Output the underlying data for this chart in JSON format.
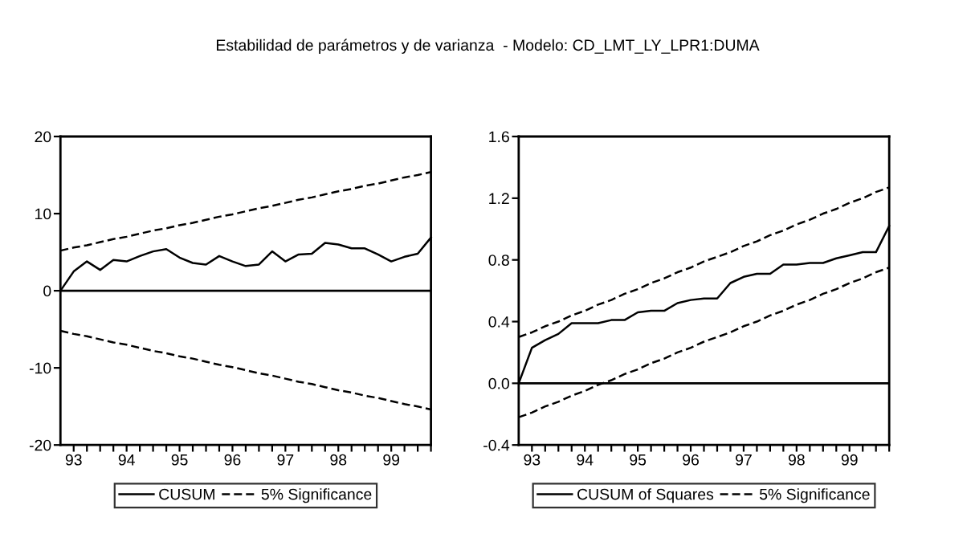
{
  "chart_data": [
    {
      "type": "line",
      "title": "Estabilidad de parámetros y de varianza  - Modelo: CD_LMT_LY_LPR1:DUMA",
      "xlim": [
        1992.75,
        1999.75
      ],
      "ylim": [
        -20,
        20
      ],
      "yticks": [
        -20,
        -10,
        0,
        10,
        20
      ],
      "xticks": [
        {
          "value": 1993,
          "label": "93"
        },
        {
          "value": 1993.25,
          "label": null
        },
        {
          "value": 1993.5,
          "label": null
        },
        {
          "value": 1993.75,
          "label": null
        },
        {
          "value": 1994,
          "label": "94"
        },
        {
          "value": 1994.25,
          "label": null
        },
        {
          "value": 1994.5,
          "label": null
        },
        {
          "value": 1994.75,
          "label": null
        },
        {
          "value": 1995,
          "label": "95"
        },
        {
          "value": 1995.25,
          "label": null
        },
        {
          "value": 1995.5,
          "label": null
        },
        {
          "value": 1995.75,
          "label": null
        },
        {
          "value": 1996,
          "label": "96"
        },
        {
          "value": 1996.25,
          "label": null
        },
        {
          "value": 1996.5,
          "label": null
        },
        {
          "value": 1996.75,
          "label": null
        },
        {
          "value": 1997,
          "label": "97"
        },
        {
          "value": 1997.25,
          "label": null
        },
        {
          "value": 1997.5,
          "label": null
        },
        {
          "value": 1997.75,
          "label": null
        },
        {
          "value": 1998,
          "label": "98"
        },
        {
          "value": 1998.25,
          "label": null
        },
        {
          "value": 1998.5,
          "label": null
        },
        {
          "value": 1998.75,
          "label": null
        },
        {
          "value": 1999,
          "label": "99"
        },
        {
          "value": 1999.25,
          "label": null
        },
        {
          "value": 1999.5,
          "label": null
        },
        {
          "value": 1999.75,
          "label": null
        }
      ],
      "x": [
        1992.75,
        1993,
        1993.25,
        1993.5,
        1993.75,
        1994,
        1994.25,
        1994.5,
        1994.75,
        1995,
        1995.25,
        1995.5,
        1995.75,
        1996,
        1996.25,
        1996.5,
        1996.75,
        1997,
        1997.25,
        1997.5,
        1997.75,
        1998,
        1998.25,
        1998.5,
        1998.75,
        1999,
        1999.25,
        1999.5,
        1999.75
      ],
      "series": [
        {
          "name": "CUSUM",
          "color": "#000000",
          "line_style": "solid",
          "values": [
            0,
            2.5,
            3.8,
            2.7,
            4.0,
            3.8,
            4.5,
            5.1,
            5.4,
            4.3,
            3.6,
            3.4,
            4.5,
            3.8,
            3.2,
            3.4,
            5.1,
            3.8,
            4.7,
            4.8,
            6.2,
            6.0,
            5.5,
            5.5,
            4.7,
            3.8,
            4.4,
            4.8,
            6.9
          ]
        },
        {
          "name": "5% Significance",
          "color": "#000000",
          "line_style": "dashed",
          "values": [
            5.2,
            5.6,
            5.9,
            6.3,
            6.7,
            7.0,
            7.4,
            7.8,
            8.1,
            8.5,
            8.8,
            9.2,
            9.6,
            9.9,
            10.3,
            10.7,
            11.0,
            11.4,
            11.8,
            12.1,
            12.5,
            12.9,
            13.2,
            13.6,
            13.9,
            14.3,
            14.7,
            15.0,
            15.4
          ]
        },
        {
          "color": "#000000",
          "line_style": "dashed",
          "values": [
            -5.2,
            -5.6,
            -5.9,
            -6.3,
            -6.7,
            -7.0,
            -7.4,
            -7.8,
            -8.1,
            -8.5,
            -8.8,
            -9.2,
            -9.6,
            -9.9,
            -10.3,
            -10.7,
            -11.0,
            -11.4,
            -11.8,
            -12.1,
            -12.5,
            -12.9,
            -13.2,
            -13.6,
            -13.9,
            -14.3,
            -14.7,
            -15.0,
            -15.4
          ]
        }
      ],
      "ref_lines": [
        {
          "axis": "y",
          "value": 0,
          "color": "#000000",
          "line_style": "solid"
        }
      ],
      "grid": false,
      "legend": "bottom"
    },
    {
      "type": "line",
      "xlim": [
        1992.75,
        1999.75
      ],
      "ylim": [
        -0.4,
        1.6
      ],
      "yticks": [
        {
          "value": -0.4,
          "label": "-0.4"
        },
        {
          "value": 0,
          "label": "0.0"
        },
        {
          "value": 0.4,
          "label": "0.4"
        },
        {
          "value": 0.8,
          "label": "0.8"
        },
        {
          "value": 1.2,
          "label": "1.2"
        },
        {
          "value": 1.6,
          "label": "1.6"
        }
      ],
      "xticks": [
        {
          "value": 1993,
          "label": "93"
        },
        {
          "value": 1993.25,
          "label": null
        },
        {
          "value": 1993.5,
          "label": null
        },
        {
          "value": 1993.75,
          "label": null
        },
        {
          "value": 1994,
          "label": "94"
        },
        {
          "value": 1994.25,
          "label": null
        },
        {
          "value": 1994.5,
          "label": null
        },
        {
          "value": 1994.75,
          "label": null
        },
        {
          "value": 1995,
          "label": "95"
        },
        {
          "value": 1995.25,
          "label": null
        },
        {
          "value": 1995.5,
          "label": null
        },
        {
          "value": 1995.75,
          "label": null
        },
        {
          "value": 1996,
          "label": "96"
        },
        {
          "value": 1996.25,
          "label": null
        },
        {
          "value": 1996.5,
          "label": null
        },
        {
          "value": 1996.75,
          "label": null
        },
        {
          "value": 1997,
          "label": "97"
        },
        {
          "value": 1997.25,
          "label": null
        },
        {
          "value": 1997.5,
          "label": null
        },
        {
          "value": 1997.75,
          "label": null
        },
        {
          "value": 1998,
          "label": "98"
        },
        {
          "value": 1998.25,
          "label": null
        },
        {
          "value": 1998.5,
          "label": null
        },
        {
          "value": 1998.75,
          "label": null
        },
        {
          "value": 1999,
          "label": "99"
        },
        {
          "value": 1999.25,
          "label": null
        },
        {
          "value": 1999.5,
          "label": null
        },
        {
          "value": 1999.75,
          "label": null
        }
      ],
      "x": [
        1992.75,
        1993,
        1993.25,
        1993.5,
        1993.75,
        1994,
        1994.25,
        1994.5,
        1994.75,
        1995,
        1995.25,
        1995.5,
        1995.75,
        1996,
        1996.25,
        1996.5,
        1996.75,
        1997,
        1997.25,
        1997.5,
        1997.75,
        1998,
        1998.25,
        1998.5,
        1998.75,
        1999,
        1999.25,
        1999.5,
        1999.75
      ],
      "series": [
        {
          "name": "CUSUM of Squares",
          "color": "#000000",
          "line_style": "solid",
          "values": [
            0,
            0.23,
            0.28,
            0.32,
            0.39,
            0.39,
            0.39,
            0.41,
            0.41,
            0.46,
            0.47,
            0.47,
            0.52,
            0.54,
            0.55,
            0.55,
            0.65,
            0.69,
            0.71,
            0.71,
            0.77,
            0.77,
            0.78,
            0.78,
            0.81,
            0.83,
            0.85,
            0.85,
            1.02
          ]
        },
        {
          "name": "5% Significance",
          "color": "#000000",
          "line_style": "dashed",
          "values": [
            0.3,
            0.33,
            0.37,
            0.4,
            0.44,
            0.47,
            0.51,
            0.54,
            0.58,
            0.61,
            0.65,
            0.68,
            0.72,
            0.75,
            0.79,
            0.82,
            0.85,
            0.89,
            0.92,
            0.96,
            0.99,
            1.03,
            1.06,
            1.1,
            1.13,
            1.17,
            1.2,
            1.24,
            1.27
          ]
        },
        {
          "color": "#000000",
          "line_style": "dashed",
          "values": [
            -0.22,
            -0.19,
            -0.15,
            -0.12,
            -0.08,
            -0.05,
            -0.01,
            0.02,
            0.06,
            0.09,
            0.13,
            0.16,
            0.2,
            0.23,
            0.27,
            0.3,
            0.33,
            0.37,
            0.4,
            0.44,
            0.47,
            0.51,
            0.54,
            0.58,
            0.61,
            0.65,
            0.68,
            0.72,
            0.75
          ]
        }
      ],
      "ref_lines": [
        {
          "axis": "y",
          "value": 0,
          "color": "#000000",
          "line_style": "solid"
        }
      ],
      "grid": false,
      "legend": "bottom"
    }
  ]
}
